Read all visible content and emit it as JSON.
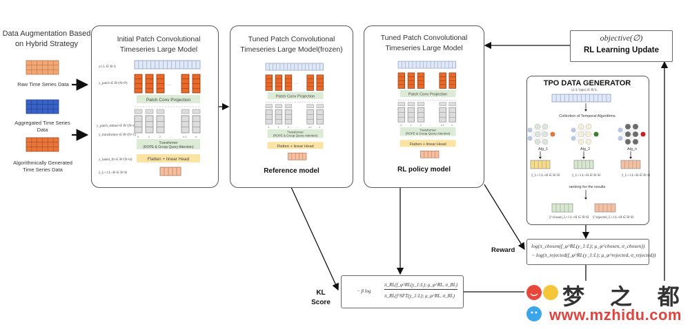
{
  "augmentation": {
    "title": "Data Augmentation Based on Hybrid Strategy",
    "items": [
      {
        "label": "Raw Time Series Data",
        "color": "#f0a878"
      },
      {
        "label": "Aggregated Time Series Data",
        "color": "#3a63c8"
      },
      {
        "label": "Algorithmically Generated Time Series Data",
        "color": "#e8763a"
      }
    ]
  },
  "initial_model": {
    "title": "Initial Patch Convolutional Timeseries Large Model",
    "math_labels": [
      "y1:L ∈ ℝ^L",
      "y_patch ∈ ℝ^(N×P)",
      "y_patch_embed ∈ ℝ^(N×d)",
      "y_transformer ∈ ℝ^(N×1)",
      "y_latent_flt ∈ ℝ^(N×d)",
      "ŷ_L+1:L+H ∈ ℝ^H"
    ]
  },
  "model_layers": {
    "patch_conv": "Patch Conv Projection",
    "transformer": "Transformer",
    "transformer_sub": "(ROPE & Group Query Attention)",
    "flatten": "Flatten + linear Head",
    "indices": [
      "0",
      "1",
      "2",
      "....",
      "n-1",
      "n"
    ],
    "ellipsis": "....."
  },
  "reference_model": {
    "title": "Tuned Patch Convolutional Timeseries Large Model(frozen)",
    "caption": "Reference model"
  },
  "policy_model": {
    "title": "Tuned Patch Convolutional Timeseries Large Model",
    "caption": "RL policy model"
  },
  "rl_update": {
    "objective": "objective(∅)",
    "label": "RL Learning Update"
  },
  "tpo": {
    "title": "TPO DATA GENERATOR",
    "input_label": "y1:L^(tpo) ∈ ℝ^L",
    "collection": "Collection of Temporal Algorithms",
    "algorithms": [
      {
        "name": "Alg_1",
        "output_color": "#f7dc86",
        "node_color": "#dde3dd",
        "out_node": "#e07a3a",
        "out_label": "ŷ_L+1:L+H ∈ ℝ^H"
      },
      {
        "name": "Alg_2",
        "output_color": "#d6e9cf",
        "node_color": "#f6efd8",
        "out_node": "#3f7d33",
        "out_label": "ŷ_L+1:L+H ∈ ℝ^H"
      },
      {
        "name": "Alg_n",
        "output_color": "#f6c0a0",
        "node_color": "#6c6c6c",
        "out_node": "#c8201e",
        "out_label": "ŷ_L+1:L+H ∈ ℝ^H"
      }
    ],
    "ranking": "ranking for the results",
    "chosen_label": "ŷ^chosen_L+1:L+H ∈ ℝ^H",
    "rejected_label": "ŷ^rejected_L+1:L+H ∈ ℝ^H"
  },
  "reward": {
    "label": "Reward",
    "line1": "log(π_chosen(f_φ^RL(y_1:L); μ_φ^chosen, σ_chosen))",
    "line2": "− log(π_rejected(f_φ^RL(y_1:L); μ_φ^rejected, σ_rejected))"
  },
  "kl": {
    "label_line1": "KL",
    "label_line2": "Score",
    "prefix": "− β log",
    "numerator": "π_RL(f_φ^RL(y_1:L); μ_φ^RL, σ_RL)",
    "denominator": "π_RL(f^SFT(y_1:L); μ_φ^RL, σ_RL)"
  },
  "watermark": {
    "brand": "梦 之 都",
    "url": "www.mzhidu.com"
  }
}
